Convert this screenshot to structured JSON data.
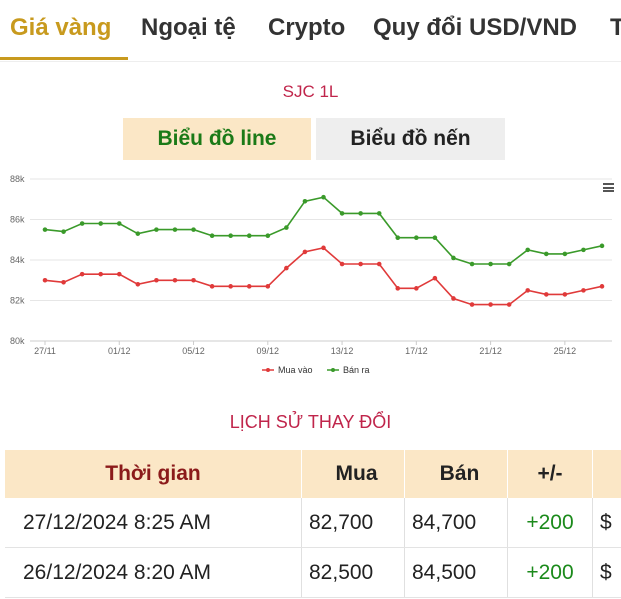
{
  "tabs": [
    {
      "label": "Giá vàng",
      "active": true
    },
    {
      "label": "Ngoại tệ",
      "active": false
    },
    {
      "label": "Crypto",
      "active": false
    },
    {
      "label": "Quy đổi USD/VND",
      "active": false
    },
    {
      "label": "T",
      "active": false
    }
  ],
  "chart_title": "SJC 1L",
  "chart_types": {
    "line": "Biểu đồ line",
    "candle": "Biểu đồ nến"
  },
  "colors": {
    "accent": "#c89a1e",
    "buy": "#e03a3a",
    "sell": "#3a9a2a",
    "title": "#c0254b"
  },
  "chart_data": {
    "type": "line",
    "x": [
      "27/11",
      "28/11",
      "29/11",
      "30/11",
      "01/12",
      "02/12",
      "03/12",
      "04/12",
      "05/12",
      "06/12",
      "07/12",
      "08/12",
      "09/12",
      "10/12",
      "11/12",
      "12/12",
      "13/12",
      "14/12",
      "15/12",
      "16/12",
      "17/12",
      "18/12",
      "19/12",
      "20/12",
      "21/12",
      "22/12",
      "23/12",
      "24/12",
      "25/12",
      "26/12",
      "27/12"
    ],
    "x_tick_labels": [
      "27/11",
      "01/12",
      "05/12",
      "09/12",
      "13/12",
      "17/12",
      "21/12",
      "25/12"
    ],
    "y_tick_labels": [
      "80k",
      "82k",
      "84k",
      "86k",
      "88k"
    ],
    "ylim": [
      80000,
      88000
    ],
    "series": [
      {
        "name": "Mua vào",
        "color": "#e03a3a",
        "values": [
          83000,
          82900,
          83300,
          83300,
          83300,
          82800,
          83000,
          83000,
          83000,
          82700,
          82700,
          82700,
          82700,
          83600,
          84400,
          84600,
          83800,
          83800,
          83800,
          82600,
          82600,
          83100,
          82100,
          81800,
          81800,
          81800,
          82500,
          82300,
          82300,
          82500,
          82700
        ]
      },
      {
        "name": "Bán ra",
        "color": "#3a9a2a",
        "values": [
          85500,
          85400,
          85800,
          85800,
          85800,
          85300,
          85500,
          85500,
          85500,
          85200,
          85200,
          85200,
          85200,
          85600,
          86900,
          87100,
          86300,
          86300,
          86300,
          85100,
          85100,
          85100,
          84100,
          83800,
          83800,
          83800,
          84500,
          84300,
          84300,
          84500,
          84700
        ]
      }
    ],
    "grid": true,
    "legend": "bottom"
  },
  "menu_icon": "hamburger-menu-icon",
  "history": {
    "title": "LỊCH SỬ THAY ĐỔI",
    "headers": {
      "time": "Thời gian",
      "buy": "Mua",
      "sell": "Bán",
      "diff": "+/-"
    },
    "rows": [
      {
        "time": "27/12/2024 8:25 AM",
        "buy": "82,700",
        "sell": "84,700",
        "diff": "+200",
        "extra": "$"
      },
      {
        "time": "26/12/2024 8:20 AM",
        "buy": "82,500",
        "sell": "84,500",
        "diff": "+200",
        "extra": "$"
      }
    ]
  }
}
